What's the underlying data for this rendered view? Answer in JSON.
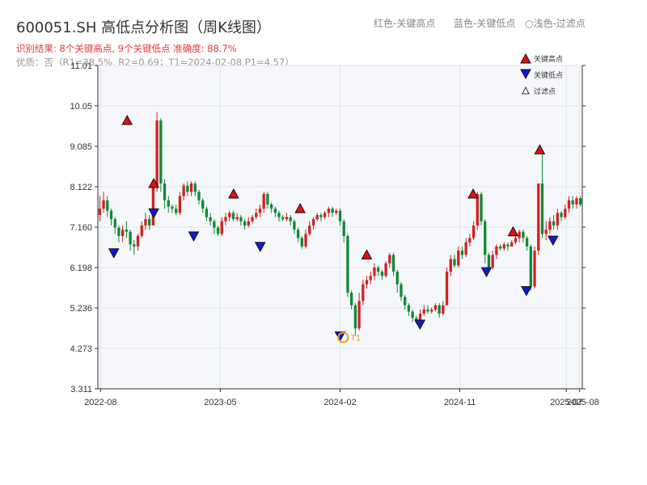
{
  "header": {
    "title": "600051.SH 高低点分析图（周K线图）",
    "hint_red": "红色-关键高点",
    "hint_blue": "蓝色-关键低点",
    "hint_light": "○浅色-过滤点",
    "result_line": "识别结果: 8个关键高点, 9个关键低点  准确度: 88.7%",
    "quality_line": "优质：否（R1=38.5%, R2=0.69；T1=2024-02-08,P1=4.57）"
  },
  "chart_data": {
    "type": "candlestick",
    "y_ticks": [
      "3.311",
      "4.273",
      "5.236",
      "6.198",
      "7.160",
      "8.122",
      "9.085",
      "10.05",
      "11.01"
    ],
    "ylim": [
      3.311,
      11.01
    ],
    "x_ticks": [
      "2022-08",
      "2023-05",
      "2024-02",
      "2024-11",
      "2025-07",
      "2025-08"
    ],
    "grid": true,
    "colors": {
      "up": "#d42020",
      "down": "#0e8a35",
      "high_marker": "#e01010",
      "low_marker": "#1018d8",
      "t1": "#f5a020"
    },
    "legend": {
      "position": "top-right",
      "items": [
        {
          "label": "关键高点",
          "type": "high"
        },
        {
          "label": "关键低点",
          "type": "low"
        },
        {
          "label": "过滤点",
          "type": "filtered"
        }
      ]
    },
    "key_highs": [
      {
        "x": "2022-10",
        "y": 9.7
      },
      {
        "x": "2022-12",
        "y": 8.2
      },
      {
        "x": "2023-06",
        "y": 7.95
      },
      {
        "x": "2023-11",
        "y": 7.6
      },
      {
        "x": "2024-04",
        "y": 6.5
      },
      {
        "x": "2024-12",
        "y": 7.95
      },
      {
        "x": "2025-03",
        "y": 7.05
      },
      {
        "x": "2025-05",
        "y": 9.0
      }
    ],
    "key_lows": [
      {
        "x": "2022-09",
        "y": 6.55
      },
      {
        "x": "2022-12",
        "y": 7.5
      },
      {
        "x": "2023-03",
        "y": 6.95
      },
      {
        "x": "2023-08",
        "y": 6.7
      },
      {
        "x": "2024-02",
        "y": 4.57
      },
      {
        "x": "2024-08",
        "y": 4.85
      },
      {
        "x": "2025-01",
        "y": 6.1
      },
      {
        "x": "2025-04",
        "y": 5.65
      },
      {
        "x": "2025-06",
        "y": 6.85
      }
    ],
    "annotation": {
      "label": "T1",
      "x": "2024-02-08",
      "y": 4.57
    },
    "candles": [
      [
        7.45,
        7.6,
        7.9,
        7.3
      ],
      [
        7.6,
        7.8,
        8.0,
        7.5
      ],
      [
        7.8,
        7.55,
        7.9,
        7.4
      ],
      [
        7.55,
        7.35,
        7.6,
        7.2
      ],
      [
        7.35,
        7.15,
        7.4,
        7.0
      ],
      [
        7.15,
        6.95,
        7.2,
        6.8
      ],
      [
        6.95,
        7.1,
        7.2,
        6.8
      ],
      [
        7.1,
        7.05,
        7.3,
        6.9
      ],
      [
        7.05,
        6.75,
        7.1,
        6.6
      ],
      [
        6.75,
        6.7,
        6.85,
        6.5
      ],
      [
        6.7,
        6.95,
        7.0,
        6.6
      ],
      [
        6.95,
        7.2,
        7.3,
        6.9
      ],
      [
        7.2,
        7.35,
        7.5,
        7.1
      ],
      [
        7.35,
        7.2,
        7.45,
        7.1
      ],
      [
        7.2,
        8.1,
        8.3,
        7.2
      ],
      [
        8.1,
        9.7,
        9.9,
        8.0
      ],
      [
        9.7,
        8.2,
        9.75,
        8.0
      ],
      [
        8.2,
        7.8,
        8.3,
        7.6
      ],
      [
        7.8,
        7.65,
        7.9,
        7.5
      ],
      [
        7.65,
        7.6,
        7.7,
        7.5
      ],
      [
        7.6,
        7.5,
        7.7,
        7.45
      ],
      [
        7.5,
        7.9,
        8.0,
        7.45
      ],
      [
        7.9,
        8.15,
        8.2,
        7.8
      ],
      [
        8.15,
        8.0,
        8.25,
        7.9
      ],
      [
        8.0,
        8.2,
        8.25,
        7.9
      ],
      [
        8.2,
        8.0,
        8.25,
        7.9
      ],
      [
        8.0,
        7.8,
        8.05,
        7.7
      ],
      [
        7.8,
        7.6,
        7.85,
        7.5
      ],
      [
        7.6,
        7.4,
        7.65,
        7.3
      ],
      [
        7.4,
        7.3,
        7.5,
        7.2
      ],
      [
        7.3,
        7.15,
        7.35,
        7.0
      ],
      [
        7.15,
        7.0,
        7.2,
        6.95
      ],
      [
        7.0,
        7.3,
        7.4,
        6.95
      ],
      [
        7.3,
        7.4,
        7.5,
        7.2
      ],
      [
        7.4,
        7.5,
        7.55,
        7.3
      ],
      [
        7.5,
        7.35,
        7.55,
        7.3
      ],
      [
        7.35,
        7.4,
        7.5,
        7.3
      ],
      [
        7.4,
        7.3,
        7.45,
        7.2
      ],
      [
        7.3,
        7.2,
        7.35,
        7.1
      ],
      [
        7.2,
        7.3,
        7.4,
        7.15
      ],
      [
        7.3,
        7.4,
        7.45,
        7.25
      ],
      [
        7.4,
        7.5,
        7.6,
        7.35
      ],
      [
        7.5,
        7.6,
        7.7,
        7.4
      ],
      [
        7.6,
        7.95,
        8.0,
        7.5
      ],
      [
        7.95,
        7.7,
        8.0,
        7.6
      ],
      [
        7.7,
        7.6,
        7.75,
        7.5
      ],
      [
        7.6,
        7.5,
        7.65,
        7.4
      ],
      [
        7.5,
        7.4,
        7.55,
        7.3
      ],
      [
        7.4,
        7.35,
        7.45,
        7.3
      ],
      [
        7.35,
        7.4,
        7.5,
        7.3
      ],
      [
        7.4,
        7.3,
        7.45,
        7.2
      ],
      [
        7.3,
        7.1,
        7.35,
        7.0
      ],
      [
        7.1,
        6.9,
        7.15,
        6.8
      ],
      [
        6.9,
        6.7,
        6.95,
        6.65
      ],
      [
        6.7,
        7.0,
        7.1,
        6.65
      ],
      [
        7.0,
        7.2,
        7.3,
        6.95
      ],
      [
        7.2,
        7.35,
        7.4,
        7.1
      ],
      [
        7.35,
        7.45,
        7.5,
        7.3
      ],
      [
        7.45,
        7.4,
        7.5,
        7.3
      ],
      [
        7.4,
        7.5,
        7.55,
        7.35
      ],
      [
        7.5,
        7.6,
        7.65,
        7.4
      ],
      [
        7.6,
        7.5,
        7.65,
        7.4
      ],
      [
        7.5,
        7.55,
        7.6,
        7.45
      ],
      [
        7.55,
        7.3,
        7.6,
        7.2
      ],
      [
        7.3,
        6.95,
        7.35,
        6.8
      ],
      [
        6.95,
        5.6,
        7.0,
        5.5
      ],
      [
        5.6,
        5.3,
        5.65,
        5.2
      ],
      [
        5.3,
        4.75,
        5.35,
        4.57
      ],
      [
        4.75,
        5.4,
        5.6,
        4.7
      ],
      [
        5.4,
        5.8,
        5.9,
        5.3
      ],
      [
        5.8,
        5.9,
        6.0,
        5.7
      ],
      [
        5.9,
        6.0,
        6.1,
        5.8
      ],
      [
        6.0,
        6.2,
        6.3,
        5.9
      ],
      [
        6.2,
        6.1,
        6.25,
        6.0
      ],
      [
        6.1,
        6.0,
        6.15,
        5.9
      ],
      [
        6.0,
        6.3,
        6.35,
        5.95
      ],
      [
        6.3,
        6.5,
        6.55,
        6.2
      ],
      [
        6.5,
        6.1,
        6.55,
        6.0
      ],
      [
        6.1,
        5.8,
        6.15,
        5.6
      ],
      [
        5.8,
        5.5,
        5.85,
        5.4
      ],
      [
        5.5,
        5.3,
        5.55,
        5.2
      ],
      [
        5.3,
        5.15,
        5.35,
        5.05
      ],
      [
        5.15,
        5.0,
        5.2,
        4.9
      ],
      [
        5.0,
        4.9,
        5.05,
        4.85
      ],
      [
        4.9,
        5.1,
        5.2,
        4.85
      ],
      [
        5.1,
        5.2,
        5.3,
        5.05
      ],
      [
        5.2,
        5.15,
        5.3,
        5.1
      ],
      [
        5.15,
        5.2,
        5.25,
        5.1
      ],
      [
        5.2,
        5.3,
        5.35,
        5.15
      ],
      [
        5.3,
        5.1,
        5.35,
        5.0
      ],
      [
        5.1,
        5.3,
        5.4,
        5.05
      ],
      [
        5.3,
        6.1,
        6.2,
        5.3
      ],
      [
        6.1,
        6.4,
        6.5,
        6.0
      ],
      [
        6.4,
        6.25,
        6.5,
        6.2
      ],
      [
        6.25,
        6.6,
        6.7,
        6.2
      ],
      [
        6.6,
        6.5,
        6.7,
        6.4
      ],
      [
        6.5,
        6.8,
        6.9,
        6.45
      ],
      [
        6.8,
        6.9,
        7.0,
        6.7
      ],
      [
        6.9,
        7.2,
        7.3,
        6.85
      ],
      [
        7.2,
        7.95,
        8.0,
        7.1
      ],
      [
        7.95,
        7.3,
        8.0,
        7.2
      ],
      [
        7.3,
        6.5,
        7.35,
        6.3
      ],
      [
        6.5,
        6.2,
        6.55,
        6.1
      ],
      [
        6.2,
        6.5,
        6.6,
        6.15
      ],
      [
        6.5,
        6.7,
        6.75,
        6.4
      ],
      [
        6.7,
        6.65,
        6.75,
        6.6
      ],
      [
        6.65,
        6.75,
        6.8,
        6.6
      ],
      [
        6.75,
        6.7,
        6.8,
        6.6
      ],
      [
        6.7,
        6.8,
        6.85,
        6.7
      ],
      [
        6.8,
        6.9,
        6.95,
        6.75
      ],
      [
        6.9,
        7.05,
        7.1,
        6.8
      ],
      [
        7.05,
        6.9,
        7.1,
        6.8
      ],
      [
        6.9,
        6.7,
        6.95,
        6.6
      ],
      [
        6.7,
        5.75,
        6.75,
        5.65
      ],
      [
        5.75,
        6.6,
        6.7,
        5.7
      ],
      [
        6.6,
        8.2,
        8.2,
        6.5
      ],
      [
        8.2,
        7.0,
        9.0,
        6.9
      ],
      [
        7.0,
        7.1,
        7.3,
        6.85
      ],
      [
        7.1,
        7.3,
        7.4,
        7.0
      ],
      [
        7.3,
        7.2,
        7.45,
        7.1
      ],
      [
        7.2,
        7.5,
        7.6,
        7.1
      ],
      [
        7.5,
        7.4,
        7.55,
        7.3
      ],
      [
        7.4,
        7.6,
        7.7,
        7.35
      ],
      [
        7.6,
        7.8,
        7.9,
        7.5
      ],
      [
        7.8,
        7.7,
        7.9,
        7.6
      ],
      [
        7.7,
        7.85,
        7.9,
        7.6
      ],
      [
        7.85,
        7.7,
        7.9,
        7.65
      ]
    ]
  }
}
